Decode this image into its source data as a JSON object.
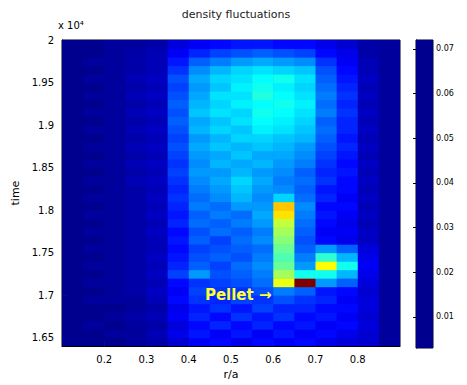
{
  "chart_data": {
    "type": "heatmap",
    "title": "density fluctuations",
    "x_label": "r/a",
    "y_label": "time",
    "y_exponent_label": "x 10⁴",
    "xlim": [
      0.1,
      0.9
    ],
    "xticks": [
      0.2,
      0.3,
      0.4,
      0.5,
      0.6,
      0.7,
      0.8
    ],
    "ylim": [
      1.64,
      2
    ],
    "yticks": [
      1.65,
      1.7,
      1.75,
      1.8,
      1.85,
      1.9,
      1.95,
      2
    ],
    "x": [
      0.125,
      0.175,
      0.225,
      0.275,
      0.325,
      0.375,
      0.425,
      0.475,
      0.525,
      0.575,
      0.625,
      0.675,
      0.725,
      0.775,
      0.825,
      0.875
    ],
    "y": [
      1.645,
      1.655,
      1.665,
      1.675,
      1.685,
      1.695,
      1.705,
      1.715,
      1.725,
      1.735,
      1.745,
      1.755,
      1.765,
      1.775,
      1.785,
      1.795,
      1.805,
      1.815,
      1.825,
      1.835,
      1.845,
      1.855,
      1.865,
      1.875,
      1.885,
      1.895,
      1.905,
      1.915,
      1.925,
      1.935,
      1.945,
      1.955,
      1.965,
      1.975,
      1.985,
      1.995
    ],
    "values": [
      [
        0.003,
        0.003,
        0.003,
        0.004,
        0.005,
        0.008,
        0.011,
        0.012,
        0.01,
        0.012,
        0.011,
        0.012,
        0.01,
        0.009,
        0.008,
        0.004
      ],
      [
        0.003,
        0.003,
        0.004,
        0.004,
        0.006,
        0.01,
        0.013,
        0.011,
        0.013,
        0.011,
        0.013,
        0.011,
        0.012,
        0.01,
        0.008,
        0.004
      ],
      [
        0.003,
        0.004,
        0.003,
        0.004,
        0.005,
        0.009,
        0.012,
        0.014,
        0.012,
        0.014,
        0.012,
        0.013,
        0.011,
        0.012,
        0.009,
        0.004
      ],
      [
        0.003,
        0.003,
        0.004,
        0.005,
        0.006,
        0.011,
        0.014,
        0.012,
        0.015,
        0.013,
        0.015,
        0.012,
        0.013,
        0.011,
        0.008,
        0.004
      ],
      [
        0.003,
        0.003,
        0.003,
        0.004,
        0.005,
        0.01,
        0.013,
        0.015,
        0.013,
        0.016,
        0.014,
        0.014,
        0.012,
        0.012,
        0.009,
        0.004
      ],
      [
        0.003,
        0.004,
        0.004,
        0.004,
        0.006,
        0.012,
        0.015,
        0.014,
        0.016,
        0.015,
        0.017,
        0.015,
        0.014,
        0.011,
        0.009,
        0.004
      ],
      [
        0.003,
        0.003,
        0.004,
        0.005,
        0.007,
        0.011,
        0.016,
        0.015,
        0.015,
        0.017,
        0.02,
        0.018,
        0.013,
        0.012,
        0.008,
        0.004
      ],
      [
        0.003,
        0.004,
        0.004,
        0.005,
        0.006,
        0.012,
        0.015,
        0.016,
        0.017,
        0.019,
        0.045,
        0.072,
        0.022,
        0.018,
        0.009,
        0.004
      ],
      [
        0.003,
        0.003,
        0.004,
        0.005,
        0.007,
        0.016,
        0.022,
        0.017,
        0.018,
        0.02,
        0.04,
        0.03,
        0.03,
        0.024,
        0.01,
        0.004
      ],
      [
        0.003,
        0.004,
        0.004,
        0.005,
        0.006,
        0.014,
        0.018,
        0.016,
        0.019,
        0.021,
        0.036,
        0.022,
        0.046,
        0.03,
        0.011,
        0.004
      ],
      [
        0.003,
        0.003,
        0.004,
        0.005,
        0.007,
        0.013,
        0.017,
        0.018,
        0.017,
        0.02,
        0.034,
        0.02,
        0.032,
        0.024,
        0.01,
        0.004
      ],
      [
        0.003,
        0.004,
        0.004,
        0.005,
        0.006,
        0.012,
        0.016,
        0.017,
        0.018,
        0.019,
        0.036,
        0.018,
        0.022,
        0.018,
        0.009,
        0.004
      ],
      [
        0.003,
        0.003,
        0.004,
        0.005,
        0.006,
        0.013,
        0.018,
        0.016,
        0.019,
        0.021,
        0.038,
        0.017,
        0.012,
        0.01,
        0.007,
        0.004
      ],
      [
        0.003,
        0.004,
        0.004,
        0.005,
        0.007,
        0.012,
        0.017,
        0.019,
        0.018,
        0.02,
        0.04,
        0.018,
        0.011,
        0.011,
        0.007,
        0.004
      ],
      [
        0.003,
        0.003,
        0.004,
        0.005,
        0.006,
        0.014,
        0.019,
        0.018,
        0.02,
        0.022,
        0.042,
        0.019,
        0.012,
        0.01,
        0.006,
        0.004
      ],
      [
        0.003,
        0.004,
        0.004,
        0.005,
        0.007,
        0.013,
        0.018,
        0.02,
        0.019,
        0.023,
        0.048,
        0.02,
        0.013,
        0.011,
        0.007,
        0.004
      ],
      [
        0.003,
        0.003,
        0.004,
        0.005,
        0.006,
        0.014,
        0.02,
        0.019,
        0.022,
        0.022,
        0.05,
        0.021,
        0.012,
        0.012,
        0.006,
        0.004
      ],
      [
        0.003,
        0.004,
        0.004,
        0.005,
        0.007,
        0.015,
        0.019,
        0.021,
        0.024,
        0.021,
        0.026,
        0.019,
        0.014,
        0.011,
        0.007,
        0.004
      ],
      [
        0.003,
        0.003,
        0.004,
        0.005,
        0.006,
        0.014,
        0.02,
        0.022,
        0.025,
        0.022,
        0.021,
        0.018,
        0.013,
        0.012,
        0.006,
        0.004
      ],
      [
        0.003,
        0.004,
        0.004,
        0.006,
        0.007,
        0.015,
        0.021,
        0.023,
        0.026,
        0.023,
        0.02,
        0.019,
        0.015,
        0.012,
        0.007,
        0.004
      ],
      [
        0.003,
        0.003,
        0.004,
        0.005,
        0.006,
        0.016,
        0.022,
        0.022,
        0.024,
        0.022,
        0.021,
        0.018,
        0.014,
        0.013,
        0.006,
        0.004
      ],
      [
        0.003,
        0.004,
        0.004,
        0.006,
        0.007,
        0.015,
        0.021,
        0.024,
        0.023,
        0.024,
        0.022,
        0.02,
        0.015,
        0.012,
        0.007,
        0.004
      ],
      [
        0.003,
        0.003,
        0.004,
        0.005,
        0.006,
        0.016,
        0.022,
        0.023,
        0.025,
        0.023,
        0.023,
        0.021,
        0.016,
        0.013,
        0.006,
        0.004
      ],
      [
        0.003,
        0.004,
        0.004,
        0.006,
        0.007,
        0.017,
        0.023,
        0.025,
        0.024,
        0.025,
        0.024,
        0.022,
        0.017,
        0.014,
        0.007,
        0.004
      ],
      [
        0.003,
        0.003,
        0.004,
        0.005,
        0.006,
        0.016,
        0.022,
        0.024,
        0.026,
        0.026,
        0.025,
        0.024,
        0.018,
        0.013,
        0.006,
        0.004
      ],
      [
        0.003,
        0.004,
        0.004,
        0.006,
        0.007,
        0.017,
        0.024,
        0.026,
        0.025,
        0.028,
        0.027,
        0.025,
        0.019,
        0.014,
        0.007,
        0.004
      ],
      [
        0.003,
        0.003,
        0.004,
        0.005,
        0.006,
        0.018,
        0.023,
        0.025,
        0.027,
        0.029,
        0.028,
        0.026,
        0.018,
        0.014,
        0.006,
        0.004
      ],
      [
        0.003,
        0.004,
        0.004,
        0.006,
        0.007,
        0.017,
        0.025,
        0.027,
        0.026,
        0.03,
        0.029,
        0.027,
        0.02,
        0.015,
        0.007,
        0.004
      ],
      [
        0.003,
        0.003,
        0.004,
        0.005,
        0.006,
        0.018,
        0.024,
        0.026,
        0.028,
        0.029,
        0.03,
        0.028,
        0.019,
        0.014,
        0.006,
        0.004
      ],
      [
        0.003,
        0.004,
        0.004,
        0.006,
        0.007,
        0.017,
        0.023,
        0.027,
        0.027,
        0.031,
        0.029,
        0.027,
        0.02,
        0.015,
        0.007,
        0.004
      ],
      [
        0.003,
        0.003,
        0.004,
        0.005,
        0.006,
        0.016,
        0.022,
        0.025,
        0.028,
        0.03,
        0.028,
        0.026,
        0.019,
        0.014,
        0.006,
        0.004
      ],
      [
        0.003,
        0.004,
        0.004,
        0.006,
        0.007,
        0.017,
        0.023,
        0.026,
        0.027,
        0.029,
        0.03,
        0.027,
        0.018,
        0.013,
        0.007,
        0.004
      ],
      [
        0.003,
        0.003,
        0.004,
        0.005,
        0.006,
        0.015,
        0.021,
        0.024,
        0.026,
        0.027,
        0.026,
        0.025,
        0.017,
        0.012,
        0.006,
        0.004
      ],
      [
        0.003,
        0.004,
        0.004,
        0.005,
        0.006,
        0.013,
        0.018,
        0.02,
        0.022,
        0.023,
        0.022,
        0.021,
        0.015,
        0.011,
        0.006,
        0.004
      ],
      [
        0.003,
        0.003,
        0.004,
        0.005,
        0.006,
        0.011,
        0.014,
        0.016,
        0.017,
        0.018,
        0.017,
        0.016,
        0.012,
        0.01,
        0.005,
        0.004
      ],
      [
        0.003,
        0.003,
        0.004,
        0.004,
        0.005,
        0.009,
        0.011,
        0.012,
        0.013,
        0.013,
        0.012,
        0.012,
        0.01,
        0.008,
        0.005,
        0.004
      ]
    ],
    "colorbar": {
      "range": [
        0.003,
        0.072
      ],
      "ticks": [
        0.01,
        0.02,
        0.03,
        0.04,
        0.05,
        0.06,
        0.07
      ]
    },
    "annotations": [
      {
        "text": "Pellet →",
        "x": 0.517,
        "y": 1.7
      }
    ]
  }
}
